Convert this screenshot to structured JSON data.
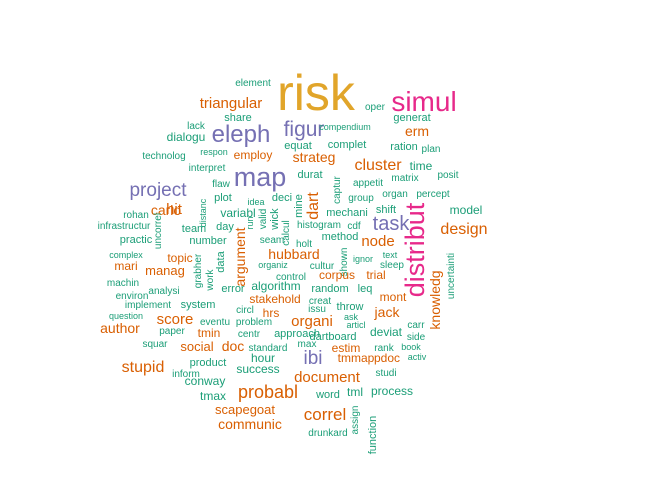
{
  "colors": {
    "gold": "#E1A52A",
    "pink": "#E7298A",
    "purple": "#7570B3",
    "orange": "#D95F02",
    "green": "#1B9E77"
  },
  "words": [
    {
      "text": "risk",
      "color": "gold"
    },
    {
      "text": "simul",
      "color": "pink"
    },
    {
      "text": "element",
      "color": "green"
    },
    {
      "text": "oper",
      "color": "green"
    },
    {
      "text": "triangular",
      "color": "orange"
    },
    {
      "text": "share",
      "color": "green"
    },
    {
      "text": "generat",
      "color": "green"
    },
    {
      "text": "lack",
      "color": "green"
    },
    {
      "text": "eleph",
      "color": "purple"
    },
    {
      "text": "figur",
      "color": "purple"
    },
    {
      "text": "compendium",
      "color": "green"
    },
    {
      "text": "erm",
      "color": "orange"
    },
    {
      "text": "dialogu",
      "color": "green"
    },
    {
      "text": "equat",
      "color": "green"
    },
    {
      "text": "complet",
      "color": "green"
    },
    {
      "text": "ration",
      "color": "green"
    },
    {
      "text": "plan",
      "color": "green"
    },
    {
      "text": "technolog",
      "color": "green"
    },
    {
      "text": "respon",
      "color": "green"
    },
    {
      "text": "employ",
      "color": "orange"
    },
    {
      "text": "strateg",
      "color": "orange"
    },
    {
      "text": "cluster",
      "color": "orange"
    },
    {
      "text": "time",
      "color": "green"
    },
    {
      "text": "interpret",
      "color": "green"
    },
    {
      "text": "map",
      "color": "purple"
    },
    {
      "text": "durat",
      "color": "green"
    },
    {
      "text": "posit",
      "color": "green"
    },
    {
      "text": "matrix",
      "color": "green"
    },
    {
      "text": "project",
      "color": "purple"
    },
    {
      "text": "flaw",
      "color": "green"
    },
    {
      "text": "captur",
      "color": "green"
    },
    {
      "text": "appetit",
      "color": "green"
    },
    {
      "text": "organ",
      "color": "green"
    },
    {
      "text": "percept",
      "color": "green"
    },
    {
      "text": "plot",
      "color": "green"
    },
    {
      "text": "deci",
      "color": "green"
    },
    {
      "text": "mine",
      "color": "green"
    },
    {
      "text": "dart",
      "color": "orange"
    },
    {
      "text": "group",
      "color": "green"
    },
    {
      "text": "carlo",
      "color": "orange"
    },
    {
      "text": "idea",
      "color": "green"
    },
    {
      "text": "hit",
      "color": "orange"
    },
    {
      "text": "distanc",
      "color": "green"
    },
    {
      "text": "variabl",
      "color": "green"
    },
    {
      "text": "run",
      "color": "green"
    },
    {
      "text": "valid",
      "color": "green"
    },
    {
      "text": "wick",
      "color": "green"
    },
    {
      "text": "mechani",
      "color": "green"
    },
    {
      "text": "shift",
      "color": "green"
    },
    {
      "text": "distribut",
      "color": "pink"
    },
    {
      "text": "model",
      "color": "green"
    },
    {
      "text": "rohan",
      "color": "green"
    },
    {
      "text": "infrastructur",
      "color": "green"
    },
    {
      "text": "uncorrel",
      "color": "green"
    },
    {
      "text": "team",
      "color": "green"
    },
    {
      "text": "day",
      "color": "green"
    },
    {
      "text": "calcul",
      "color": "green"
    },
    {
      "text": "histogram",
      "color": "green"
    },
    {
      "text": "cdf",
      "color": "green"
    },
    {
      "text": "task",
      "color": "purple"
    },
    {
      "text": "design",
      "color": "orange"
    },
    {
      "text": "practic",
      "color": "green"
    },
    {
      "text": "number",
      "color": "green"
    },
    {
      "text": "argument",
      "color": "orange"
    },
    {
      "text": "seam",
      "color": "green"
    },
    {
      "text": "method",
      "color": "green"
    },
    {
      "text": "holt",
      "color": "green"
    },
    {
      "text": "node",
      "color": "orange"
    },
    {
      "text": "complex",
      "color": "green"
    },
    {
      "text": "topic",
      "color": "orange"
    },
    {
      "text": "data",
      "color": "green"
    },
    {
      "text": "hubbard",
      "color": "orange"
    },
    {
      "text": "shown",
      "color": "green"
    },
    {
      "text": "text",
      "color": "green"
    },
    {
      "text": "ignor",
      "color": "green"
    },
    {
      "text": "sleep",
      "color": "green"
    },
    {
      "text": "knowledg",
      "color": "orange"
    },
    {
      "text": "uncertainti",
      "color": "green"
    },
    {
      "text": "mari",
      "color": "orange"
    },
    {
      "text": "manag",
      "color": "orange"
    },
    {
      "text": "grabher",
      "color": "green"
    },
    {
      "text": "work",
      "color": "green"
    },
    {
      "text": "organiz",
      "color": "green"
    },
    {
      "text": "cultur",
      "color": "green"
    },
    {
      "text": "corpus",
      "color": "orange"
    },
    {
      "text": "trial",
      "color": "orange"
    },
    {
      "text": "machin",
      "color": "green"
    },
    {
      "text": "control",
      "color": "green"
    },
    {
      "text": "algorithm",
      "color": "green"
    },
    {
      "text": "random",
      "color": "green"
    },
    {
      "text": "leq",
      "color": "green"
    },
    {
      "text": "analysi",
      "color": "green"
    },
    {
      "text": "error",
      "color": "green"
    },
    {
      "text": "environ",
      "color": "green"
    },
    {
      "text": "stakehold",
      "color": "orange"
    },
    {
      "text": "creat",
      "color": "green"
    },
    {
      "text": "mont",
      "color": "orange"
    },
    {
      "text": "implement",
      "color": "green"
    },
    {
      "text": "system",
      "color": "green"
    },
    {
      "text": "issu",
      "color": "green"
    },
    {
      "text": "throw",
      "color": "green"
    },
    {
      "text": "circl",
      "color": "green"
    },
    {
      "text": "hrs",
      "color": "orange"
    },
    {
      "text": "organi",
      "color": "orange"
    },
    {
      "text": "jack",
      "color": "orange"
    },
    {
      "text": "question",
      "color": "green"
    },
    {
      "text": "score",
      "color": "orange"
    },
    {
      "text": "eventu",
      "color": "green"
    },
    {
      "text": "problem",
      "color": "green"
    },
    {
      "text": "ask",
      "color": "green"
    },
    {
      "text": "articl",
      "color": "green"
    },
    {
      "text": "carr",
      "color": "green"
    },
    {
      "text": "author",
      "color": "orange"
    },
    {
      "text": "tmin",
      "color": "orange"
    },
    {
      "text": "centr",
      "color": "green"
    },
    {
      "text": "approach",
      "color": "green"
    },
    {
      "text": "dartboard",
      "color": "green"
    },
    {
      "text": "side",
      "color": "green"
    },
    {
      "text": "squar",
      "color": "green"
    },
    {
      "text": "paper",
      "color": "green"
    },
    {
      "text": "max",
      "color": "green"
    },
    {
      "text": "deviat",
      "color": "green"
    },
    {
      "text": "social",
      "color": "orange"
    },
    {
      "text": "doc",
      "color": "orange"
    },
    {
      "text": "standard",
      "color": "green"
    },
    {
      "text": "estim",
      "color": "orange"
    },
    {
      "text": "rank",
      "color": "green"
    },
    {
      "text": "book",
      "color": "green"
    },
    {
      "text": "ibi",
      "color": "purple"
    },
    {
      "text": "stupid",
      "color": "orange"
    },
    {
      "text": "product",
      "color": "green"
    },
    {
      "text": "hour",
      "color": "green"
    },
    {
      "text": "tmmap",
      "color": "orange"
    },
    {
      "text": "pdoc",
      "color": "orange"
    },
    {
      "text": "activ",
      "color": "green"
    },
    {
      "text": "inform",
      "color": "green"
    },
    {
      "text": "success",
      "color": "green"
    },
    {
      "text": "document",
      "color": "orange"
    },
    {
      "text": "studi",
      "color": "green"
    },
    {
      "text": "conway",
      "color": "green"
    },
    {
      "text": "probabl",
      "color": "orange"
    },
    {
      "text": "tml",
      "color": "green"
    },
    {
      "text": "process",
      "color": "green"
    },
    {
      "text": "tmax",
      "color": "green"
    },
    {
      "text": "word",
      "color": "green"
    },
    {
      "text": "scapegoat",
      "color": "orange"
    },
    {
      "text": "correl",
      "color": "orange"
    },
    {
      "text": "assign",
      "color": "green"
    },
    {
      "text": "communic",
      "color": "orange"
    },
    {
      "text": "drunkard",
      "color": "green"
    },
    {
      "text": "function",
      "color": "green"
    }
  ]
}
